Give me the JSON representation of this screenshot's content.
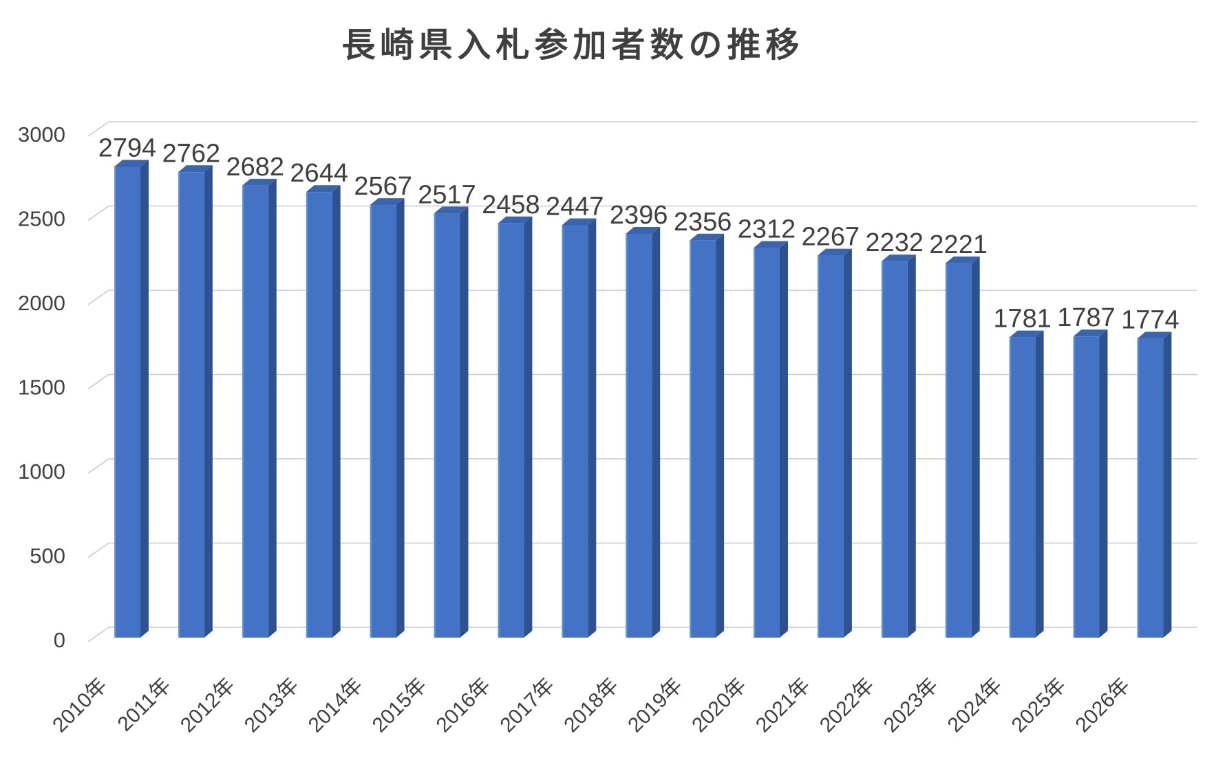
{
  "chart_data": {
    "type": "bar",
    "style": "3d-column",
    "title": "長崎県入札参加者数の推移",
    "categories": [
      "2010年",
      "2011年",
      "2012年",
      "2013年",
      "2014年",
      "2015年",
      "2016年",
      "2017年",
      "2018年",
      "2019年",
      "2020年",
      "2021年",
      "2022年",
      "2023年",
      "2024年",
      "2025年",
      "2026年"
    ],
    "values": [
      2794,
      2762,
      2682,
      2644,
      2567,
      2517,
      2458,
      2447,
      2396,
      2356,
      2312,
      2267,
      2232,
      2221,
      1781,
      1787,
      1774
    ],
    "data_labels": [
      2794,
      2762,
      2682,
      2644,
      2567,
      2517,
      2458,
      2447,
      2396,
      2356,
      2312,
      2267,
      2232,
      2221,
      1781,
      1787,
      1774
    ],
    "xlabel": "",
    "ylabel": "",
    "ylim": [
      0,
      3000
    ],
    "yticks": [
      0,
      500,
      1000,
      1500,
      2000,
      2500,
      3000
    ],
    "grid": true,
    "legend": false,
    "colors": {
      "bar_front": "#4472C4",
      "bar_front_highlight": "#7FA1DC",
      "bar_side": "#2E5191",
      "bar_top": "#3A64AC",
      "gridline": "#C9C9C9",
      "text": "#3F3F3F",
      "background": "#FFFFFF"
    }
  }
}
